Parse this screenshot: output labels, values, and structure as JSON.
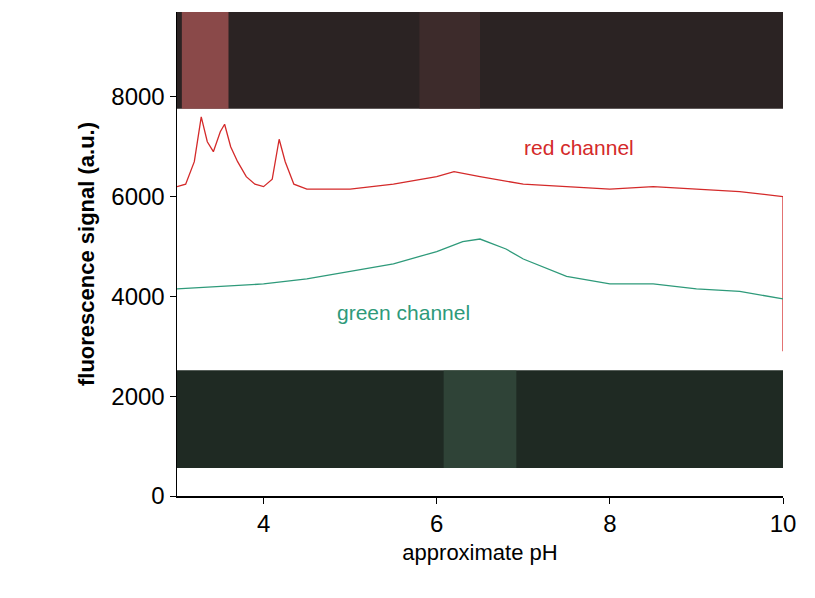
{
  "chart_data": {
    "type": "line",
    "x_label": "approximate pH",
    "y_label": "fluorescence signal (a.u.)",
    "xlim": [
      3,
      10
    ],
    "xticks": [
      4,
      6,
      8,
      10
    ],
    "ylim": [
      0,
      9700
    ],
    "yticks": [
      0,
      2000,
      4000,
      6000,
      8000
    ],
    "grid": false,
    "series": [
      {
        "name": "red channel",
        "color": "#d42a2a",
        "x": [
          3.0,
          3.1,
          3.2,
          3.28,
          3.35,
          3.42,
          3.5,
          3.55,
          3.62,
          3.7,
          3.8,
          3.9,
          4.0,
          4.1,
          4.18,
          4.25,
          4.35,
          4.5,
          5.0,
          5.5,
          6.0,
          6.2,
          6.5,
          7.0,
          7.5,
          8.0,
          8.5,
          9.0,
          9.5,
          10.0,
          10.0
        ],
        "values": [
          6200,
          6250,
          6700,
          7600,
          7100,
          6900,
          7300,
          7450,
          7000,
          6700,
          6400,
          6250,
          6200,
          6350,
          7150,
          6700,
          6250,
          6150,
          6150,
          6250,
          6400,
          6500,
          6400,
          6250,
          6200,
          6150,
          6200,
          6150,
          6100,
          6000,
          2900
        ]
      },
      {
        "name": "green channel",
        "color": "#2e9a7a",
        "x": [
          3.0,
          3.5,
          4.0,
          4.5,
          5.0,
          5.5,
          6.0,
          6.3,
          6.5,
          6.8,
          7.0,
          7.5,
          8.0,
          8.5,
          9.0,
          9.5,
          10.0
        ],
        "values": [
          4150,
          4200,
          4250,
          4350,
          4500,
          4650,
          4900,
          5100,
          5150,
          4950,
          4750,
          4400,
          4250,
          4250,
          4150,
          4100,
          3950
        ]
      }
    ]
  }
}
